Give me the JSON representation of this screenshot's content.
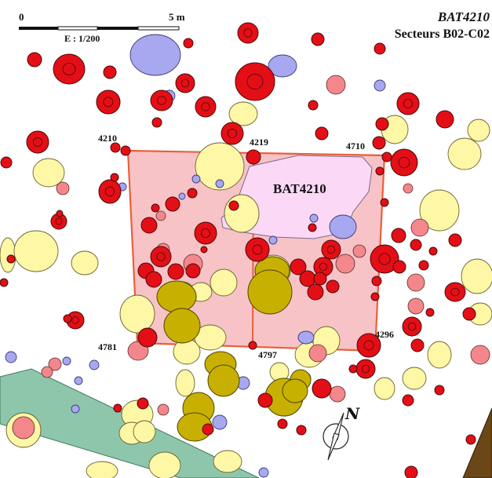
{
  "title": {
    "name": "BAT4210",
    "sectors": "Secteurs B02-C02"
  },
  "scale": {
    "zero": "0",
    "max": "5 m",
    "ratio": "E : 1/200"
  },
  "building": {
    "label": "BAT4210",
    "corner_labels": [
      "4210",
      "4219",
      "4710",
      "4781",
      "4797",
      "4296"
    ]
  },
  "north": {
    "label": "N"
  },
  "colors": {
    "post_hole": "#e40f16",
    "pink_pit": "#f4878b",
    "yellow_pit": "#fdf7a6",
    "olive_pit": "#c7b000",
    "blue_pit": "#a8a8f0",
    "building_fill": "#f6b8bd",
    "building_outline": "#e8603a",
    "hearth_zone": "#fbd8f6",
    "green_band": "#8ec6ab",
    "brown_band": "#6b4616"
  }
}
